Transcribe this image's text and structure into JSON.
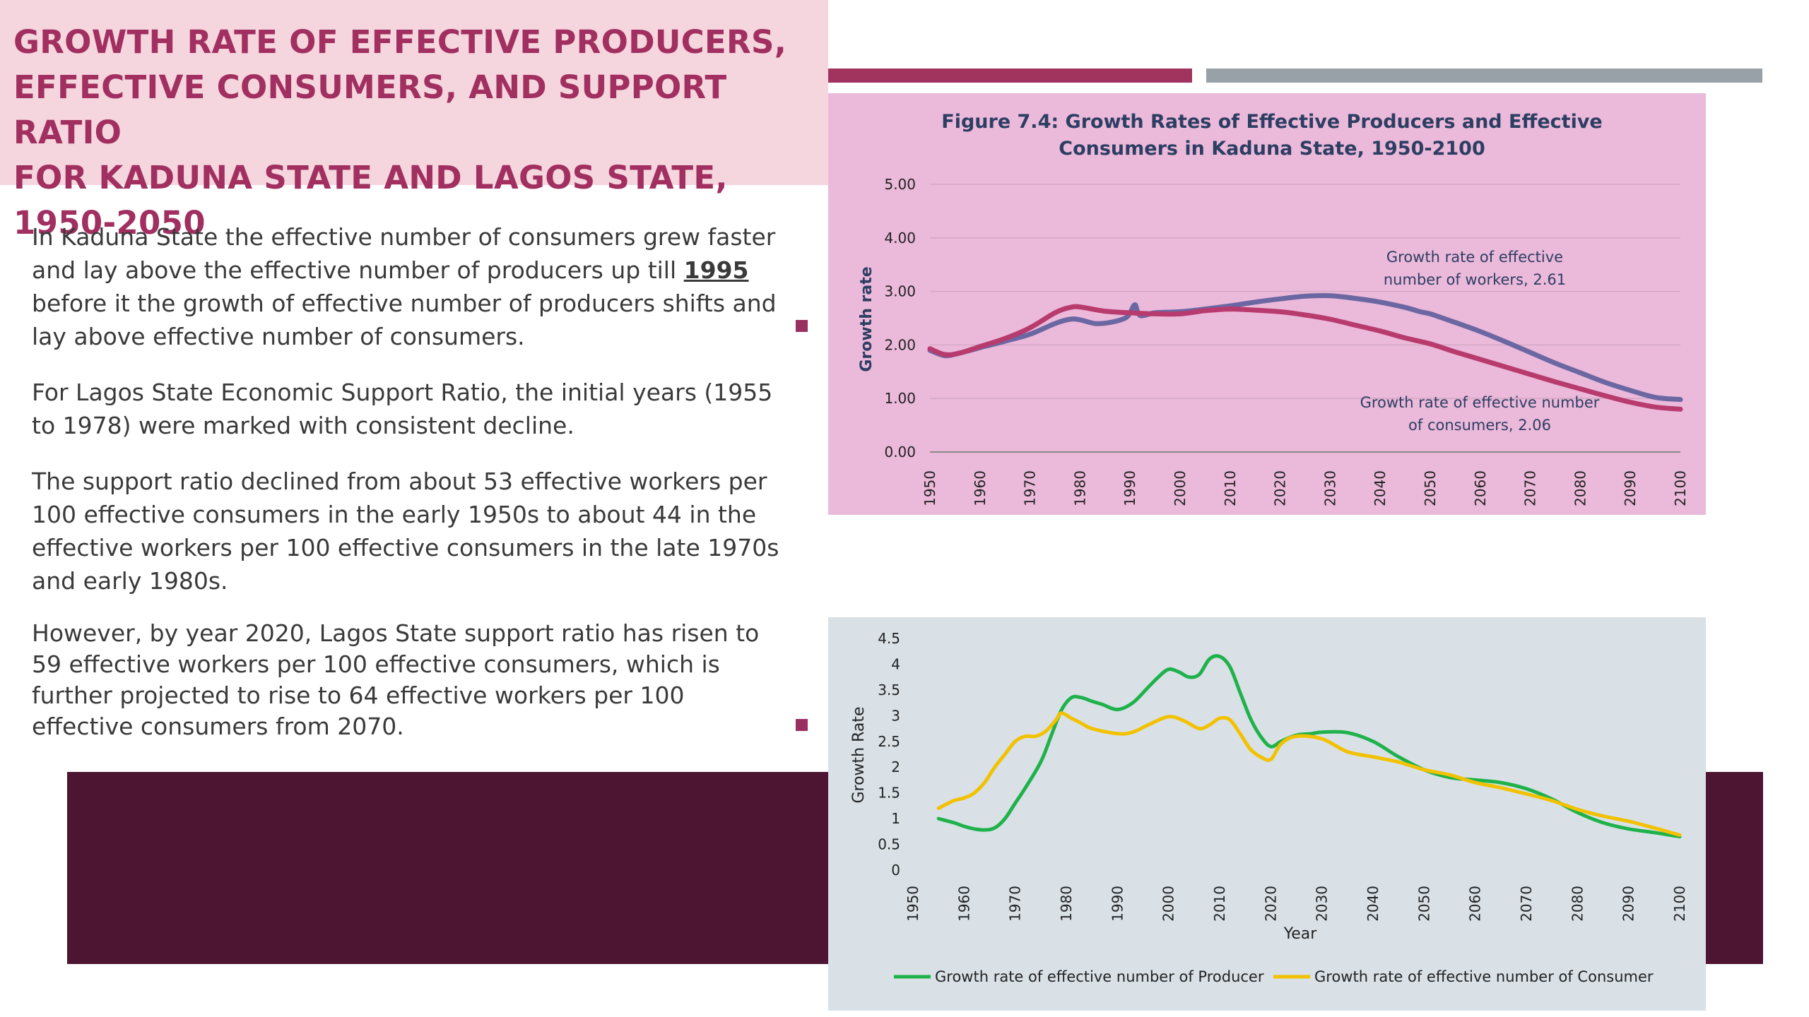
{
  "slide": {
    "title_lines": [
      "GROWTH RATE OF EFFECTIVE PRODUCERS,",
      "EFFECTIVE CONSUMERS, AND SUPPORT RATIO",
      "FOR KADUNA STATE AND LAGOS STATE, 1950-2050"
    ],
    "paragraphs": {
      "p1_before": "In Kaduna State the effective number of consumers grew faster and lay above the effective number of producers up till ",
      "p1_year": "1995",
      "p1_after": " before it the growth of effective number of producers shifts and lay above effective number of consumers.",
      "p2": "For Lagos State Economic Support Ratio, the initial years (1955 to 1978) were marked with consistent decline.",
      "p3": "The support ratio declined from about 53 effective workers per 100 effective consumers in the early 1950s to about 44 in the effective workers per 100 effective consumers in the late 1970s and early 1980s.",
      "p4": "However, by year 2020, Lagos State support ratio has risen to 59 effective workers per 100 effective consumers, which is further projected to rise to 64 effective workers per 100 effective consumers from 2070."
    },
    "colors": {
      "title": "#a12f5f",
      "title_band": "#f5d5de",
      "accent_maroon": "#a1345e",
      "accent_gray": "#98a1a7",
      "dark_band": "#4d1532",
      "bullet": "#9a2f62"
    }
  },
  "chart_data": [
    {
      "type": "line",
      "title_lines": [
        "Figure 7.4: Growth Rates of Effective Producers and Effective",
        "Consumers in Kaduna State, 1950-2100"
      ],
      "xlabel": "",
      "ylabel": "Growth rate",
      "xlim": [
        1950,
        2100
      ],
      "ylim": [
        0,
        5
      ],
      "x_ticks": [
        1950,
        1960,
        1970,
        1980,
        1990,
        2000,
        2010,
        2020,
        2030,
        2040,
        2050,
        2060,
        2070,
        2080,
        2090,
        2100
      ],
      "y_ticks": [
        "0.00",
        "1.00",
        "2.00",
        "3.00",
        "4.00",
        "5.00"
      ],
      "grid": true,
      "panel_color": "#ebb9da",
      "annotations": [
        {
          "lines": [
            "Growth rate of effective",
            "number of workers, 2.61"
          ]
        },
        {
          "lines": [
            "Growth rate of effective number",
            "of consumers, 2.06"
          ]
        }
      ],
      "series": [
        {
          "color": "#6b67a2",
          "x": [
            1950,
            1953,
            1956,
            1960,
            1965,
            1970,
            1975,
            1978,
            1980,
            1983,
            1986,
            1989,
            1990,
            1991,
            1992,
            1995,
            2000,
            2005,
            2010,
            2015,
            2020,
            2025,
            2030,
            2035,
            2040,
            2045,
            2048,
            2050,
            2055,
            2060,
            2065,
            2070,
            2075,
            2080,
            2085,
            2090,
            2095,
            2100
          ],
          "values": [
            1.9,
            1.8,
            1.85,
            1.95,
            2.07,
            2.2,
            2.4,
            2.48,
            2.47,
            2.4,
            2.42,
            2.5,
            2.6,
            2.75,
            2.55,
            2.6,
            2.62,
            2.67,
            2.73,
            2.8,
            2.86,
            2.91,
            2.92,
            2.87,
            2.8,
            2.7,
            2.62,
            2.58,
            2.42,
            2.25,
            2.06,
            1.86,
            1.66,
            1.48,
            1.3,
            1.15,
            1.02,
            0.98
          ]
        },
        {
          "color": "#b83b6e",
          "x": [
            1950,
            1953,
            1956,
            1960,
            1965,
            1970,
            1975,
            1978,
            1980,
            1985,
            1990,
            1995,
            2000,
            2005,
            2010,
            2015,
            2020,
            2025,
            2030,
            2035,
            2040,
            2045,
            2050,
            2055,
            2060,
            2065,
            2070,
            2075,
            2080,
            2085,
            2090,
            2095,
            2100
          ],
          "values": [
            1.93,
            1.82,
            1.85,
            1.97,
            2.12,
            2.32,
            2.6,
            2.7,
            2.71,
            2.63,
            2.6,
            2.58,
            2.58,
            2.64,
            2.67,
            2.65,
            2.62,
            2.56,
            2.48,
            2.37,
            2.26,
            2.13,
            2.02,
            1.87,
            1.73,
            1.59,
            1.45,
            1.31,
            1.18,
            1.05,
            0.93,
            0.84,
            0.8
          ]
        }
      ]
    },
    {
      "type": "line",
      "title": "",
      "xlabel": "Year",
      "ylabel": "Growth Rate",
      "xlim": [
        1950,
        2100
      ],
      "ylim": [
        0,
        4.5
      ],
      "x_ticks": [
        1950,
        1960,
        1970,
        1980,
        1990,
        2000,
        2010,
        2020,
        2030,
        2040,
        2050,
        2060,
        2070,
        2080,
        2090,
        2100
      ],
      "y_ticks": [
        "0",
        "0.5",
        "1",
        "1.5",
        "2",
        "2.5",
        "3",
        "3.5",
        "4",
        "4.5"
      ],
      "grid": false,
      "legend_position": "bottom",
      "panel_color": "#d9e1e7",
      "series": [
        {
          "name": "Growth rate of effective number of Producer",
          "color": "#1fb24a",
          "x": [
            1955,
            1958,
            1960,
            1962,
            1964,
            1966,
            1968,
            1970,
            1972,
            1975,
            1977,
            1979,
            1981,
            1983,
            1985,
            1987,
            1990,
            1993,
            1996,
            1998,
            2000,
            2002,
            2004,
            2006,
            2008,
            2010,
            2012,
            2014,
            2016,
            2018,
            2020,
            2022,
            2025,
            2028,
            2030,
            2035,
            2040,
            2045,
            2050,
            2055,
            2060,
            2065,
            2070,
            2075,
            2080,
            2085,
            2090,
            2095,
            2100
          ],
          "values": [
            1.0,
            0.92,
            0.85,
            0.8,
            0.78,
            0.82,
            1.0,
            1.3,
            1.6,
            2.1,
            2.6,
            3.1,
            3.35,
            3.35,
            3.28,
            3.22,
            3.12,
            3.25,
            3.55,
            3.75,
            3.9,
            3.85,
            3.75,
            3.8,
            4.1,
            4.15,
            3.95,
            3.45,
            2.95,
            2.6,
            2.4,
            2.5,
            2.62,
            2.65,
            2.68,
            2.67,
            2.5,
            2.2,
            1.95,
            1.8,
            1.75,
            1.7,
            1.58,
            1.38,
            1.12,
            0.92,
            0.8,
            0.73,
            0.65
          ]
        },
        {
          "name": "Growth rate of effective number of Consumer",
          "color": "#f2c100",
          "x": [
            1955,
            1958,
            1960,
            1962,
            1964,
            1966,
            1968,
            1970,
            1972,
            1974,
            1976,
            1978,
            1979,
            1981,
            1983,
            1985,
            1990,
            1993,
            1996,
            2000,
            2003,
            2006,
            2008,
            2010,
            2012,
            2014,
            2016,
            2018,
            2020,
            2022,
            2025,
            2030,
            2035,
            2040,
            2045,
            2050,
            2055,
            2060,
            2065,
            2070,
            2075,
            2080,
            2085,
            2090,
            2095,
            2100
          ],
          "values": [
            1.2,
            1.35,
            1.4,
            1.5,
            1.7,
            2.0,
            2.25,
            2.5,
            2.6,
            2.6,
            2.7,
            2.92,
            3.05,
            2.95,
            2.85,
            2.75,
            2.65,
            2.68,
            2.82,
            2.98,
            2.9,
            2.75,
            2.82,
            2.95,
            2.92,
            2.65,
            2.35,
            2.2,
            2.15,
            2.45,
            2.6,
            2.55,
            2.3,
            2.2,
            2.1,
            1.95,
            1.85,
            1.7,
            1.6,
            1.48,
            1.35,
            1.18,
            1.05,
            0.95,
            0.82,
            0.68
          ]
        }
      ]
    }
  ]
}
